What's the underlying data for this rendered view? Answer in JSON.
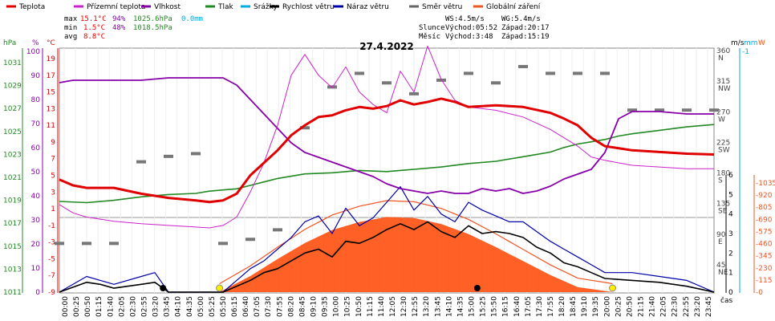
{
  "chart_data": {
    "type": "line",
    "title": "27.4.2022",
    "legend": [
      {
        "name": "Teplota",
        "color": "#e00000"
      },
      {
        "name": "Přízemní teplota",
        "color": "#cc22cc"
      },
      {
        "name": "Vlhkost",
        "color": "#8800aa"
      },
      {
        "name": "Tlak",
        "color": "#228822"
      },
      {
        "name": "Srážky",
        "color": "#00aadd"
      },
      {
        "name": "Rychlost větru",
        "color": "#000000"
      },
      {
        "name": "Náraz větru",
        "color": "#0000aa"
      },
      {
        "name": "Směr větru",
        "color": "#666666"
      },
      {
        "name": "Globální záření",
        "color": "#ee5522"
      }
    ],
    "stats": {
      "max": {
        "label": "max",
        "temp": "15.1°C",
        "hum": "94%",
        "press": "1025.6hPa",
        "rain": "0.0mm"
      },
      "min": {
        "label": "min",
        "temp": "1.5°C",
        "hum": "48%",
        "press": "1018.5hPa"
      },
      "avg": {
        "label": "avg",
        "temp": "8.8°C"
      },
      "wind": {
        "ws": "WS:4.5m/s",
        "wg": "WG:5.4m/s"
      },
      "sun": {
        "label": "Slunce",
        "rise": "Východ:05:52",
        "set": "Západ:20:17"
      },
      "moon": {
        "label": "Měsíc",
        "rise": "Východ:3:48",
        "set": "Západ:15:19"
      }
    },
    "axes": {
      "hpa_unit": "hPa",
      "pct_unit": "%",
      "c_unit": "°C",
      "hpa_ticks": [
        "1031",
        "1029",
        "1027",
        "1025",
        "1023",
        "1021",
        "1019",
        "1017",
        "1015",
        "1013",
        "1011"
      ],
      "pct_ticks": [
        "100",
        "90",
        "80",
        "70",
        "60",
        "50",
        "40",
        "30",
        "20",
        "10",
        "0"
      ],
      "c_ticks": [
        "19",
        "17",
        "15",
        "13",
        "11",
        "9",
        "7",
        "5",
        "3",
        "1",
        "-1",
        "-3",
        "-5",
        "-7",
        "-9"
      ],
      "ms_unit": "m/s",
      "mm_unit": "mm",
      "w_unit": "W",
      "dir_ticks": [
        {
          "deg": "360",
          "lbl": "N"
        },
        {
          "deg": "315",
          "lbl": "NW"
        },
        {
          "deg": "270",
          "lbl": "W"
        },
        {
          "deg": "225",
          "lbl": "SW"
        },
        {
          "deg": "180",
          "lbl": "S"
        },
        {
          "deg": "135",
          "lbl": "SE"
        },
        {
          "deg": "90",
          "lbl": "E"
        },
        {
          "deg": "45",
          "lbl": "NE"
        }
      ],
      "ms_ticks": [
        "6",
        "5",
        "4",
        "3",
        "2",
        "1",
        "0"
      ],
      "mm_ticks": [
        "1"
      ],
      "w_ticks": [
        "1035",
        "920",
        "805",
        "690",
        "575",
        "460",
        "345",
        "230",
        "115",
        "0"
      ],
      "x_label": "čas",
      "x_ticks": [
        "00:00",
        "00:25",
        "00:50",
        "01:15",
        "01:40",
        "02:05",
        "02:30",
        "02:55",
        "03:20",
        "03:45",
        "04:10",
        "04:35",
        "05:00",
        "05:25",
        "05:50",
        "06:15",
        "06:40",
        "07:05",
        "07:30",
        "07:55",
        "08:20",
        "08:45",
        "09:10",
        "09:35",
        "10:00",
        "10:25",
        "10:50",
        "11:15",
        "11:40",
        "12:05",
        "12:30",
        "12:55",
        "13:20",
        "13:45",
        "14:10",
        "14:35",
        "15:00",
        "15:25",
        "15:50",
        "16:15",
        "16:40",
        "17:05",
        "17:30",
        "17:55",
        "18:20",
        "18:45",
        "19:10",
        "19:35",
        "20:00",
        "20:25",
        "20:50",
        "21:15",
        "21:40",
        "22:05",
        "22:30",
        "22:55",
        "23:20",
        "23:45"
      ]
    },
    "series": [
      {
        "name": "Teplota",
        "unit": "°C",
        "x": [
          0,
          0.5,
          1,
          2,
          3,
          4,
          5,
          5.5,
          6,
          6.5,
          7,
          7.5,
          8,
          8.5,
          9,
          9.5,
          10,
          10.5,
          11,
          11.5,
          12,
          12.5,
          13,
          13.5,
          14,
          14.5,
          15,
          15.5,
          16,
          17,
          18,
          18.5,
          19,
          19.5,
          20,
          21,
          22,
          23,
          24
        ],
        "y": [
          4.5,
          3.8,
          3.5,
          3.5,
          2.8,
          2.3,
          2.0,
          1.8,
          2.0,
          2.8,
          5.0,
          6.5,
          8.0,
          9.8,
          11.0,
          12.0,
          12.2,
          12.8,
          13.2,
          13.0,
          13.3,
          14.0,
          13.5,
          13.8,
          14.2,
          13.8,
          13.2,
          13.3,
          13.4,
          13.2,
          12.5,
          11.8,
          11.0,
          9.5,
          8.5,
          8.0,
          7.8,
          7.6,
          7.5
        ]
      },
      {
        "name": "Přízemní teplota",
        "unit": "°C",
        "x": [
          0,
          0.5,
          1,
          2,
          3,
          4,
          5,
          5.5,
          6,
          6.5,
          7,
          7.5,
          8,
          8.5,
          9,
          9.5,
          10,
          10.5,
          11,
          11.5,
          12,
          12.5,
          13,
          13.5,
          14,
          14.5,
          15,
          15.5,
          16,
          17,
          18,
          18.5,
          19,
          19.5,
          20,
          21,
          22,
          23,
          24
        ],
        "y": [
          1.5,
          0.5,
          0,
          -0.5,
          -0.8,
          -1.0,
          -1.2,
          -1.3,
          -1.0,
          0,
          3.0,
          6.5,
          11.0,
          17.0,
          19.5,
          17.0,
          15.5,
          18.0,
          15.0,
          13.5,
          12.5,
          17.5,
          15.0,
          20.5,
          16.5,
          14.0,
          13.2,
          13.0,
          12.8,
          12.0,
          10.5,
          9.5,
          8.5,
          7.2,
          6.8,
          6.2,
          6.0,
          5.8,
          5.8
        ]
      },
      {
        "name": "Vlhkost",
        "unit": "%",
        "x": [
          0,
          0.5,
          1,
          2,
          3,
          4,
          5,
          6,
          6.5,
          7,
          7.5,
          8,
          8.5,
          9,
          9.5,
          10,
          10.5,
          11,
          11.5,
          12,
          12.5,
          13,
          13.5,
          14,
          14.5,
          15,
          15.5,
          16,
          16.5,
          17,
          17.5,
          18,
          18.5,
          19,
          19.5,
          20,
          20.5,
          21,
          22,
          23,
          24
        ],
        "y": [
          87,
          88,
          88,
          88,
          88,
          89,
          89,
          89,
          86,
          80,
          74,
          68,
          62,
          58,
          56,
          54,
          52,
          50,
          48,
          45,
          43,
          42,
          41,
          42,
          41,
          41,
          43,
          42,
          43,
          41,
          42,
          44,
          47,
          49,
          51,
          58,
          72,
          75,
          75,
          74,
          74
        ]
      },
      {
        "name": "Tlak",
        "unit": "hPa",
        "x": [
          0,
          1,
          2,
          3,
          4,
          5,
          5.5,
          6,
          6.5,
          7,
          7.5,
          8,
          8.5,
          9,
          10,
          11,
          12,
          13,
          14,
          15,
          16,
          17,
          17.5,
          18,
          18.5,
          19,
          19.5,
          20,
          20.5,
          21,
          22,
          23,
          24
        ],
        "y": [
          1018.9,
          1018.8,
          1019.0,
          1019.3,
          1019.5,
          1019.6,
          1019.8,
          1019.9,
          1020.0,
          1020.3,
          1020.6,
          1020.9,
          1021.1,
          1021.3,
          1021.4,
          1021.6,
          1021.5,
          1021.7,
          1021.9,
          1022.2,
          1022.4,
          1022.8,
          1023.0,
          1023.2,
          1023.6,
          1023.9,
          1024.1,
          1024.3,
          1024.6,
          1024.8,
          1025.1,
          1025.4,
          1025.6
        ]
      },
      {
        "name": "Rychlost větru",
        "unit": "m/s",
        "x": [
          0,
          1,
          1.5,
          2,
          3,
          3.5,
          4,
          5,
          6,
          6.5,
          7,
          7.5,
          8,
          8.5,
          9,
          9.5,
          10,
          10.5,
          11,
          11.5,
          12,
          12.5,
          13,
          13.5,
          14,
          14.5,
          15,
          15.5,
          16,
          16.5,
          17,
          17.5,
          18,
          18.5,
          19,
          19.5,
          20,
          21,
          22,
          23,
          24
        ],
        "y": [
          0,
          0.5,
          0.4,
          0.2,
          0.4,
          0.5,
          0,
          0,
          0,
          0.3,
          0.6,
          1.0,
          1.2,
          1.6,
          2.0,
          2.2,
          1.8,
          2.6,
          2.5,
          2.8,
          3.2,
          3.5,
          3.2,
          3.6,
          3.1,
          2.8,
          3.4,
          3.0,
          3.1,
          3.0,
          2.8,
          2.3,
          2.0,
          1.5,
          1.3,
          1.0,
          0.7,
          0.6,
          0.5,
          0.3,
          0
        ]
      },
      {
        "name": "Náraz větru",
        "unit": "m/s",
        "x": [
          0,
          1,
          1.5,
          2,
          3,
          3.5,
          4,
          5,
          6,
          6.5,
          7,
          7.5,
          8,
          8.5,
          9,
          9.5,
          10,
          10.5,
          11,
          11.5,
          12,
          12.5,
          13,
          13.5,
          14,
          14.5,
          15,
          15.5,
          16,
          16.5,
          17,
          17.5,
          18,
          18.5,
          19,
          19.5,
          20,
          21,
          22,
          23,
          24
        ],
        "y": [
          0,
          0.8,
          0.6,
          0.4,
          0.8,
          1.0,
          0,
          0,
          0,
          0.6,
          1.2,
          1.6,
          2.2,
          2.8,
          3.6,
          3.9,
          3.0,
          4.3,
          3.4,
          3.8,
          4.6,
          5.4,
          4.2,
          4.9,
          4.0,
          3.6,
          4.6,
          4.2,
          3.9,
          3.6,
          3.6,
          3.1,
          2.6,
          2.2,
          1.8,
          1.4,
          1.0,
          1.0,
          0.8,
          0.6,
          0
        ]
      },
      {
        "name": "Směr větru",
        "unit": "°",
        "x": [
          0,
          1,
          2,
          3,
          4,
          5,
          6,
          7,
          8,
          9,
          10,
          11,
          12,
          13,
          14,
          15,
          16,
          17,
          18,
          19,
          20,
          21,
          22,
          23,
          24
        ],
        "y": [
          80,
          80,
          80,
          200,
          208,
          212,
          80,
          86,
          100,
          250,
          310,
          330,
          316,
          300,
          320,
          330,
          316,
          340,
          330,
          330,
          330,
          276,
          276,
          276,
          276
        ]
      },
      {
        "name": "Globální záření",
        "unit": "W",
        "x": [
          5.87,
          7,
          8,
          9,
          10,
          11,
          12,
          13,
          14,
          15,
          16,
          17,
          18,
          19,
          20.28
        ],
        "y": [
          0,
          160,
          330,
          490,
          620,
          700,
          750,
          740,
          680,
          580,
          450,
          310,
          170,
          50,
          0
        ]
      }
    ],
    "markers": {
      "sun_times": [
        5.87,
        20.28
      ],
      "moon_times": [
        3.8,
        15.32
      ]
    }
  }
}
